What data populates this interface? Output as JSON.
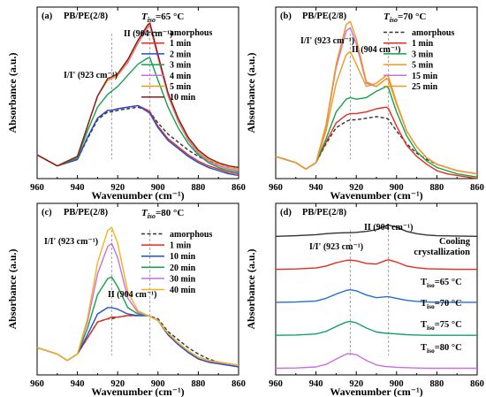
{
  "colors": {
    "amorphous": "#333333",
    "1min": "#e8291c",
    "2min": "#1f4fd6",
    "3min": "#12a34a",
    "4min": "#c86ee0",
    "5min": "#f09a1c",
    "10min": "#8b1a1a",
    "10min_blue": "#1f4fd6",
    "20min": "#12a34a",
    "30min": "#c86ee0",
    "40min": "#f5b21c",
    "15min": "#c86ee0",
    "25min": "#f09a1c",
    "cooling": "#333333",
    "iso65": "#e8291c",
    "iso70": "#1f6fd6",
    "iso75": "#12a36a",
    "iso80": "#c86ee0"
  },
  "shared": {
    "ylabel": "Absorbance (a.u.)",
    "xlabel": "Wavenumber (cm⁻¹)",
    "xticks": [
      "960",
      "940",
      "920",
      "900",
      "880",
      "860"
    ]
  },
  "chart_data": [
    {
      "type": "line",
      "panel_label": "(a)",
      "sample": "PB/PE(2/8)",
      "tiso_label": "T",
      "tiso_sub": "iso",
      "tiso_value": "=65 °C",
      "peak1_label": "I/I' (923 cm⁻¹)",
      "peak2_label": "II (904 cm⁻¹)",
      "xlim": [
        960,
        860
      ],
      "x": [
        960,
        950,
        940,
        935,
        930,
        925,
        923,
        920,
        915,
        910,
        905,
        904,
        900,
        895,
        890,
        885,
        880,
        875,
        870,
        865,
        860
      ],
      "series": [
        {
          "name": "amorphous",
          "key": "amorphous",
          "dashed": true,
          "values": [
            0.15,
            0.08,
            0.12,
            0.25,
            0.37,
            0.42,
            0.42,
            0.43,
            0.44,
            0.45,
            0.43,
            0.42,
            0.35,
            0.28,
            0.23,
            0.18,
            0.14,
            0.11,
            0.09,
            0.07,
            0.06
          ]
        },
        {
          "name": "1 min",
          "key": "1min",
          "values": [
            0.15,
            0.08,
            0.12,
            0.26,
            0.38,
            0.43,
            0.43,
            0.44,
            0.45,
            0.46,
            0.43,
            0.42,
            0.33,
            0.25,
            0.2,
            0.15,
            0.11,
            0.08,
            0.06,
            0.04,
            0.03
          ]
        },
        {
          "name": "2 min",
          "key": "2min",
          "values": [
            0.15,
            0.08,
            0.12,
            0.26,
            0.38,
            0.43,
            0.43,
            0.44,
            0.45,
            0.46,
            0.42,
            0.41,
            0.32,
            0.24,
            0.19,
            0.14,
            0.1,
            0.07,
            0.05,
            0.03,
            0.02
          ]
        },
        {
          "name": "3 min",
          "key": "3min",
          "values": [
            0.15,
            0.08,
            0.13,
            0.3,
            0.45,
            0.53,
            0.55,
            0.58,
            0.65,
            0.72,
            0.76,
            0.76,
            0.62,
            0.45,
            0.32,
            0.22,
            0.15,
            0.1,
            0.07,
            0.05,
            0.04
          ]
        },
        {
          "name": "4 min",
          "key": "4min",
          "values": [
            0.15,
            0.08,
            0.14,
            0.33,
            0.52,
            0.62,
            0.63,
            0.65,
            0.73,
            0.85,
            0.95,
            0.96,
            0.76,
            0.52,
            0.36,
            0.24,
            0.16,
            0.11,
            0.08,
            0.06,
            0.05
          ]
        },
        {
          "name": "5 min",
          "key": "5min",
          "values": [
            0.15,
            0.08,
            0.14,
            0.33,
            0.52,
            0.62,
            0.63,
            0.65,
            0.74,
            0.86,
            0.96,
            0.97,
            0.77,
            0.53,
            0.37,
            0.25,
            0.17,
            0.12,
            0.09,
            0.07,
            0.06
          ]
        },
        {
          "name": "10 min",
          "key": "10min",
          "values": [
            0.15,
            0.08,
            0.14,
            0.33,
            0.52,
            0.63,
            0.64,
            0.66,
            0.75,
            0.87,
            0.97,
            0.98,
            0.78,
            0.54,
            0.38,
            0.26,
            0.18,
            0.13,
            0.1,
            0.08,
            0.07
          ]
        }
      ]
    },
    {
      "type": "line",
      "panel_label": "(b)",
      "sample": "PB/PE(2/8)",
      "tiso_label": "T",
      "tiso_sub": "iso",
      "tiso_value": "=70 °C",
      "peak1_label": "I/I' (923 cm⁻¹)",
      "peak2_label": "II (904 cm⁻¹)",
      "xlim": [
        960,
        860
      ],
      "x": [
        960,
        950,
        945,
        940,
        935,
        930,
        925,
        923,
        920,
        915,
        910,
        905,
        904,
        900,
        895,
        890,
        885,
        880,
        875,
        870,
        865,
        860
      ],
      "series": [
        {
          "name": "amorphous",
          "key": "amorphous",
          "dashed": true,
          "values": [
            0.14,
            0.1,
            0.06,
            0.1,
            0.22,
            0.32,
            0.36,
            0.37,
            0.37,
            0.38,
            0.39,
            0.38,
            0.37,
            0.3,
            0.22,
            0.16,
            0.12,
            0.09,
            0.07,
            0.05,
            0.04,
            0.03
          ]
        },
        {
          "name": "1 min",
          "key": "1min",
          "values": [
            0.14,
            0.1,
            0.06,
            0.1,
            0.23,
            0.35,
            0.4,
            0.41,
            0.41,
            0.42,
            0.44,
            0.45,
            0.44,
            0.33,
            0.21,
            0.14,
            0.09,
            0.05,
            0.03,
            0.02,
            0.01,
            0.0
          ]
        },
        {
          "name": "3 min",
          "key": "3min",
          "values": [
            0.14,
            0.1,
            0.06,
            0.1,
            0.25,
            0.42,
            0.5,
            0.51,
            0.5,
            0.51,
            0.55,
            0.58,
            0.57,
            0.42,
            0.27,
            0.17,
            0.11,
            0.07,
            0.05,
            0.03,
            0.02,
            0.01
          ]
        },
        {
          "name": "5 min",
          "key": "5min",
          "values": [
            0.14,
            0.1,
            0.06,
            0.1,
            0.3,
            0.6,
            0.78,
            0.8,
            0.72,
            0.58,
            0.6,
            0.65,
            0.64,
            0.48,
            0.3,
            0.2,
            0.13,
            0.09,
            0.07,
            0.05,
            0.04,
            0.03
          ]
        },
        {
          "name": "15 min",
          "key": "15min",
          "values": [
            0.14,
            0.1,
            0.06,
            0.1,
            0.33,
            0.7,
            0.93,
            0.95,
            0.85,
            0.6,
            0.58,
            0.63,
            0.62,
            0.47,
            0.3,
            0.2,
            0.13,
            0.09,
            0.07,
            0.05,
            0.04,
            0.03
          ]
        },
        {
          "name": "25 min",
          "key": "25min",
          "values": [
            0.14,
            0.1,
            0.06,
            0.1,
            0.34,
            0.72,
            0.97,
            0.99,
            0.88,
            0.61,
            0.58,
            0.63,
            0.62,
            0.47,
            0.3,
            0.2,
            0.13,
            0.09,
            0.07,
            0.05,
            0.04,
            0.03
          ]
        }
      ]
    },
    {
      "type": "line",
      "panel_label": "(c)",
      "sample": "PB/PE(2/8)",
      "tiso_label": "T",
      "tiso_sub": "iso",
      "tiso_value": "=80 °C",
      "peak1_label": "I/I' (923 cm⁻¹)",
      "peak2_label": "II (904 cm⁻¹)",
      "xlim": [
        960,
        860
      ],
      "x": [
        960,
        950,
        945,
        940,
        935,
        930,
        925,
        923,
        920,
        915,
        910,
        905,
        900,
        895,
        890,
        885,
        880,
        875,
        870,
        865,
        860
      ],
      "series": [
        {
          "name": "amorphous",
          "key": "amorphous",
          "dashed": true,
          "values": [
            0.12,
            0.08,
            0.04,
            0.08,
            0.18,
            0.28,
            0.3,
            0.3,
            0.31,
            0.32,
            0.32,
            0.32,
            0.3,
            0.22,
            0.17,
            0.12,
            0.08,
            0.05,
            0.03,
            0.02,
            0.01
          ]
        },
        {
          "name": "1 min",
          "key": "1min",
          "values": [
            0.12,
            0.08,
            0.04,
            0.08,
            0.18,
            0.28,
            0.3,
            0.31,
            0.31,
            0.32,
            0.32,
            0.32,
            0.29,
            0.2,
            0.14,
            0.09,
            0.05,
            0.03,
            0.02,
            0.01,
            0.0
          ]
        },
        {
          "name": "10 min",
          "key": "10min_blue",
          "values": [
            0.12,
            0.08,
            0.04,
            0.08,
            0.2,
            0.33,
            0.37,
            0.37,
            0.36,
            0.33,
            0.32,
            0.32,
            0.29,
            0.2,
            0.14,
            0.09,
            0.05,
            0.03,
            0.02,
            0.01,
            0.0
          ]
        },
        {
          "name": "20 min",
          "key": "20min",
          "values": [
            0.12,
            0.08,
            0.04,
            0.08,
            0.24,
            0.45,
            0.55,
            0.56,
            0.5,
            0.37,
            0.33,
            0.32,
            0.29,
            0.21,
            0.15,
            0.1,
            0.06,
            0.04,
            0.03,
            0.02,
            0.01
          ]
        },
        {
          "name": "30 min",
          "key": "30min",
          "values": [
            0.12,
            0.08,
            0.04,
            0.08,
            0.28,
            0.58,
            0.75,
            0.77,
            0.68,
            0.43,
            0.34,
            0.32,
            0.29,
            0.21,
            0.15,
            0.1,
            0.06,
            0.04,
            0.03,
            0.02,
            0.01
          ]
        },
        {
          "name": "40 min",
          "key": "40min",
          "values": [
            0.12,
            0.08,
            0.04,
            0.08,
            0.3,
            0.65,
            0.85,
            0.87,
            0.77,
            0.47,
            0.35,
            0.32,
            0.29,
            0.21,
            0.15,
            0.1,
            0.06,
            0.04,
            0.03,
            0.02,
            0.01
          ]
        }
      ]
    },
    {
      "type": "line",
      "panel_label": "(d)",
      "sample": "PB/PE(2/8)",
      "peak1_label": "I/I' (923 cm⁻¹)",
      "peak2_label": "II (904 cm⁻¹)",
      "xlim": [
        960,
        860
      ],
      "x": [
        960,
        950,
        940,
        935,
        930,
        925,
        923,
        920,
        915,
        910,
        905,
        904,
        900,
        895,
        890,
        885,
        880,
        870,
        860
      ],
      "series": [
        {
          "name": "Cooling crystallization",
          "key": "cooling",
          "label_lines": [
            "Cooling",
            "crystallization"
          ],
          "offset": 4.0,
          "values": [
            0.0,
            0.02,
            0.05,
            0.08,
            0.1,
            0.11,
            0.11,
            0.12,
            0.15,
            0.2,
            0.33,
            0.34,
            0.28,
            0.15,
            0.08,
            0.04,
            0.02,
            0.01,
            0.0
          ]
        },
        {
          "name": "Tiso=65 °C",
          "key": "iso65",
          "label_main": "T",
          "label_sub": "iso",
          "label_value": "=65 °C",
          "offset": 3.0,
          "values": [
            0.0,
            0.01,
            0.04,
            0.1,
            0.2,
            0.27,
            0.28,
            0.26,
            0.18,
            0.16,
            0.28,
            0.29,
            0.22,
            0.1,
            0.05,
            0.02,
            0.01,
            0.0,
            0.0
          ]
        },
        {
          "name": "Tiso=70 °C",
          "key": "iso70",
          "label_main": "T",
          "label_sub": "iso",
          "label_value": "=70 °C",
          "offset": 2.0,
          "values": [
            0.0,
            0.01,
            0.04,
            0.12,
            0.25,
            0.36,
            0.38,
            0.35,
            0.22,
            0.14,
            0.17,
            0.17,
            0.12,
            0.06,
            0.03,
            0.01,
            0.0,
            0.0,
            0.0
          ]
        },
        {
          "name": "Tiso=75 °C",
          "key": "iso75",
          "label_main": "T",
          "label_sub": "iso",
          "label_value": "=75 °C",
          "offset": 1.0,
          "values": [
            0.0,
            0.01,
            0.04,
            0.12,
            0.27,
            0.4,
            0.42,
            0.38,
            0.22,
            0.1,
            0.06,
            0.06,
            0.04,
            0.02,
            0.01,
            0.0,
            0.0,
            0.0,
            0.0
          ]
        },
        {
          "name": "Tiso=80 °C",
          "key": "iso80",
          "label_main": "T",
          "label_sub": "iso",
          "label_value": "=80 °C",
          "offset": 0.0,
          "values": [
            0.0,
            0.01,
            0.04,
            0.12,
            0.28,
            0.43,
            0.45,
            0.41,
            0.24,
            0.1,
            0.05,
            0.05,
            0.03,
            0.02,
            0.01,
            0.0,
            0.0,
            0.0,
            0.0
          ]
        }
      ]
    }
  ]
}
